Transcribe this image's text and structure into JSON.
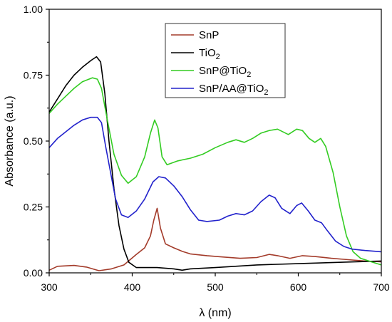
{
  "chart_data": {
    "type": "line",
    "xlabel": "λ (nm)",
    "ylabel": "Absorbance (a.u.)",
    "xlim": [
      300,
      700
    ],
    "ylim": [
      0.0,
      1.0
    ],
    "xticks": [
      300,
      400,
      500,
      600,
      700
    ],
    "yticks": [
      0.0,
      0.25,
      0.5,
      0.75,
      1.0
    ],
    "xtick_labels": [
      "300",
      "400",
      "500",
      "600",
      "700"
    ],
    "ytick_labels": [
      "0.00",
      "0.25",
      "0.50",
      "0.75",
      "1.00"
    ],
    "grid": false,
    "legend_position": "top-right",
    "series": [
      {
        "name": "SnP",
        "label_main": "SnP",
        "label_sub": "",
        "label_tail": "",
        "color": "#a33b2a",
        "points": [
          [
            300,
            0.01
          ],
          [
            310,
            0.025
          ],
          [
            330,
            0.028
          ],
          [
            345,
            0.022
          ],
          [
            360,
            0.008
          ],
          [
            375,
            0.015
          ],
          [
            390,
            0.03
          ],
          [
            405,
            0.07
          ],
          [
            415,
            0.095
          ],
          [
            422,
            0.14
          ],
          [
            426,
            0.2
          ],
          [
            430,
            0.245
          ],
          [
            434,
            0.17
          ],
          [
            440,
            0.11
          ],
          [
            450,
            0.095
          ],
          [
            460,
            0.082
          ],
          [
            470,
            0.072
          ],
          [
            490,
            0.065
          ],
          [
            510,
            0.06
          ],
          [
            530,
            0.055
          ],
          [
            550,
            0.058
          ],
          [
            565,
            0.07
          ],
          [
            575,
            0.065
          ],
          [
            590,
            0.055
          ],
          [
            605,
            0.065
          ],
          [
            620,
            0.062
          ],
          [
            640,
            0.055
          ],
          [
            660,
            0.05
          ],
          [
            680,
            0.045
          ],
          [
            700,
            0.042
          ]
        ]
      },
      {
        "name": "TiO2",
        "label_main": "TiO",
        "label_sub": "2",
        "label_tail": "",
        "color": "#000000",
        "points": [
          [
            300,
            0.61
          ],
          [
            310,
            0.66
          ],
          [
            320,
            0.71
          ],
          [
            330,
            0.75
          ],
          [
            340,
            0.78
          ],
          [
            350,
            0.805
          ],
          [
            357,
            0.82
          ],
          [
            362,
            0.8
          ],
          [
            367,
            0.68
          ],
          [
            372,
            0.5
          ],
          [
            378,
            0.32
          ],
          [
            384,
            0.18
          ],
          [
            390,
            0.09
          ],
          [
            396,
            0.04
          ],
          [
            405,
            0.02
          ],
          [
            430,
            0.02
          ],
          [
            450,
            0.015
          ],
          [
            460,
            0.01
          ],
          [
            470,
            0.015
          ],
          [
            500,
            0.02
          ],
          [
            550,
            0.03
          ],
          [
            600,
            0.035
          ],
          [
            650,
            0.04
          ],
          [
            700,
            0.045
          ]
        ]
      },
      {
        "name": "SnP@TiO2",
        "label_main": "SnP@TiO",
        "label_sub": "2",
        "label_tail": "",
        "color": "#33cc22",
        "points": [
          [
            300,
            0.605
          ],
          [
            310,
            0.64
          ],
          [
            320,
            0.67
          ],
          [
            330,
            0.7
          ],
          [
            340,
            0.725
          ],
          [
            352,
            0.74
          ],
          [
            358,
            0.735
          ],
          [
            363,
            0.7
          ],
          [
            370,
            0.58
          ],
          [
            378,
            0.45
          ],
          [
            387,
            0.37
          ],
          [
            395,
            0.34
          ],
          [
            405,
            0.365
          ],
          [
            415,
            0.44
          ],
          [
            422,
            0.53
          ],
          [
            427,
            0.58
          ],
          [
            431,
            0.55
          ],
          [
            436,
            0.44
          ],
          [
            442,
            0.41
          ],
          [
            455,
            0.425
          ],
          [
            470,
            0.435
          ],
          [
            485,
            0.45
          ],
          [
            500,
            0.475
          ],
          [
            515,
            0.495
          ],
          [
            525,
            0.505
          ],
          [
            535,
            0.495
          ],
          [
            545,
            0.51
          ],
          [
            555,
            0.53
          ],
          [
            565,
            0.54
          ],
          [
            575,
            0.545
          ],
          [
            588,
            0.525
          ],
          [
            598,
            0.545
          ],
          [
            605,
            0.54
          ],
          [
            613,
            0.51
          ],
          [
            620,
            0.495
          ],
          [
            627,
            0.51
          ],
          [
            633,
            0.48
          ],
          [
            642,
            0.38
          ],
          [
            650,
            0.25
          ],
          [
            658,
            0.14
          ],
          [
            666,
            0.08
          ],
          [
            675,
            0.055
          ],
          [
            690,
            0.04
          ],
          [
            700,
            0.03
          ]
        ]
      },
      {
        "name": "SnP/AA@TiO2",
        "label_main": "SnP/AA@TiO",
        "label_sub": "2",
        "label_tail": "",
        "color": "#2222cc",
        "points": [
          [
            300,
            0.475
          ],
          [
            310,
            0.51
          ],
          [
            320,
            0.535
          ],
          [
            330,
            0.56
          ],
          [
            340,
            0.58
          ],
          [
            350,
            0.59
          ],
          [
            358,
            0.59
          ],
          [
            363,
            0.57
          ],
          [
            368,
            0.48
          ],
          [
            374,
            0.38
          ],
          [
            380,
            0.28
          ],
          [
            387,
            0.22
          ],
          [
            395,
            0.21
          ],
          [
            405,
            0.235
          ],
          [
            415,
            0.28
          ],
          [
            425,
            0.345
          ],
          [
            432,
            0.365
          ],
          [
            440,
            0.36
          ],
          [
            450,
            0.33
          ],
          [
            460,
            0.29
          ],
          [
            470,
            0.24
          ],
          [
            480,
            0.2
          ],
          [
            490,
            0.195
          ],
          [
            505,
            0.2
          ],
          [
            515,
            0.215
          ],
          [
            525,
            0.225
          ],
          [
            535,
            0.22
          ],
          [
            545,
            0.235
          ],
          [
            555,
            0.27
          ],
          [
            565,
            0.295
          ],
          [
            572,
            0.285
          ],
          [
            580,
            0.245
          ],
          [
            590,
            0.225
          ],
          [
            598,
            0.255
          ],
          [
            604,
            0.265
          ],
          [
            612,
            0.235
          ],
          [
            620,
            0.2
          ],
          [
            628,
            0.19
          ],
          [
            635,
            0.16
          ],
          [
            645,
            0.12
          ],
          [
            655,
            0.1
          ],
          [
            665,
            0.09
          ],
          [
            680,
            0.085
          ],
          [
            700,
            0.08
          ]
        ]
      }
    ]
  }
}
